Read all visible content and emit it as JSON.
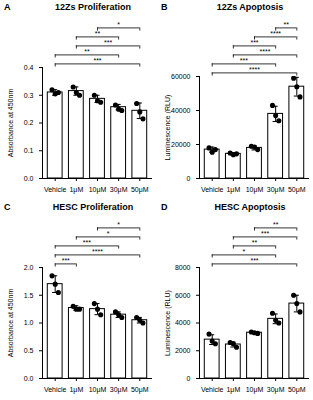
{
  "chart_data": [
    {
      "type": "bar",
      "panel": "A",
      "title": "12Zs Proliferation",
      "ylabel": "Absorbance at 450nm",
      "categories": [
        "Vehicle",
        "1μM",
        "10μM",
        "30μM",
        "50μM"
      ],
      "values": [
        0.31,
        0.315,
        0.287,
        0.257,
        0.244
      ],
      "errors": [
        0.01,
        0.015,
        0.013,
        0.01,
        0.028
      ],
      "points": [
        [
          0.32,
          0.305,
          0.31
        ],
        [
          0.33,
          0.31,
          0.3
        ],
        [
          0.3,
          0.28,
          0.275
        ],
        [
          0.265,
          0.25,
          0.245
        ],
        [
          0.27,
          0.24,
          0.215
        ]
      ],
      "color": "#000000",
      "ylim": [
        0,
        0.4
      ],
      "yticks": [
        {
          "value": 0,
          "label": "0.0"
        },
        0.1,
        0.2,
        0.3,
        0.4
      ],
      "comparisons": [
        {
          "from": "Vehicle",
          "to": "50μM",
          "label": "***"
        },
        {
          "from": "Vehicle",
          "to": "30μM",
          "label": "**"
        },
        {
          "from": "1μM",
          "to": "50μM",
          "label": "***"
        },
        {
          "from": "1μM",
          "to": "30μM",
          "label": "**"
        },
        {
          "from": "10μM",
          "to": "50μM",
          "label": "*"
        }
      ]
    },
    {
      "type": "bar",
      "panel": "B",
      "title": "12Zs Apoptosis",
      "ylabel": "Luminescence (RLU)",
      "categories": [
        "Vehicle",
        "1μM",
        "10μM",
        "30μM",
        "50μM"
      ],
      "values": [
        17000,
        14500,
        18000,
        38000,
        54000
      ],
      "errors": [
        1500,
        700,
        1200,
        4500,
        5500
      ],
      "points": [
        [
          18000,
          15500,
          17000
        ],
        [
          15000,
          14000,
          14500
        ],
        [
          19000,
          18500,
          17000
        ],
        [
          43000,
          37000,
          34000
        ],
        [
          59000,
          54000,
          48000
        ]
      ],
      "color": "#000000",
      "ylim": [
        0,
        60000
      ],
      "yticks": [
        0,
        20000,
        40000,
        60000
      ],
      "comparisons": [
        {
          "from": "Vehicle",
          "to": "50μM",
          "label": "****"
        },
        {
          "from": "Vehicle",
          "to": "30μM",
          "label": "***"
        },
        {
          "from": "1μM",
          "to": "50μM",
          "label": "****"
        },
        {
          "from": "1μM",
          "to": "30μM",
          "label": "***"
        },
        {
          "from": "10μM",
          "to": "50μM",
          "label": "****"
        },
        {
          "from": "30μM",
          "to": "50μM",
          "label": "**"
        }
      ]
    },
    {
      "type": "bar",
      "panel": "C",
      "title": "HESC Proliferation",
      "ylabel": "Absorbance at 450nm",
      "categories": [
        "Vehicle",
        "1μM",
        "10μM",
        "30μM",
        "50μM"
      ],
      "values": [
        1.7,
        1.27,
        1.25,
        1.15,
        1.05
      ],
      "errors": [
        0.15,
        0.04,
        0.1,
        0.05,
        0.05
      ],
      "points": [
        [
          1.85,
          1.7,
          1.55
        ],
        [
          1.3,
          1.25,
          1.25
        ],
        [
          1.35,
          1.25,
          1.15
        ],
        [
          1.2,
          1.15,
          1.1
        ],
        [
          1.1,
          1.05,
          1.0
        ]
      ],
      "color": "#000000",
      "ylim": [
        0,
        2.0
      ],
      "yticks": [
        {
          "value": 0,
          "label": "0.0"
        },
        0.5,
        {
          "value": 1,
          "label": "1.0"
        },
        1.5,
        {
          "value": 2,
          "label": "2.0"
        }
      ],
      "comparisons": [
        {
          "from": "Vehicle",
          "to": "1μM",
          "label": "***"
        },
        {
          "from": "Vehicle",
          "to": "50μM",
          "label": "****"
        },
        {
          "from": "Vehicle",
          "to": "30μM",
          "label": "***"
        },
        {
          "from": "1μM",
          "to": "50μM",
          "label": "*"
        },
        {
          "from": "10μM",
          "to": "50μM",
          "label": "*"
        }
      ]
    },
    {
      "type": "bar",
      "panel": "D",
      "title": "HESC Apoptosis",
      "ylabel": "Luminescence (RLU)",
      "categories": [
        "Vehicle",
        "1μM",
        "10μM",
        "30μM",
        "50μM"
      ],
      "values": [
        2800,
        2450,
        3300,
        4300,
        5400
      ],
      "errors": [
        350,
        180,
        60,
        350,
        600
      ],
      "points": [
        [
          3200,
          2700,
          2500
        ],
        [
          2600,
          2500,
          2250
        ],
        [
          3350,
          3300,
          3250
        ],
        [
          4700,
          4200,
          4000
        ],
        [
          6000,
          5400,
          4800
        ]
      ],
      "color": "#000000",
      "ylim": [
        0,
        8000
      ],
      "yticks": [
        0,
        2000,
        4000,
        6000,
        8000
      ],
      "comparisons": [
        {
          "from": "Vehicle",
          "to": "50μM",
          "label": "***"
        },
        {
          "from": "Vehicle",
          "to": "30μM",
          "label": "*"
        },
        {
          "from": "1μM",
          "to": "30μM",
          "label": "**"
        },
        {
          "from": "1μM",
          "to": "50μM",
          "label": "***"
        },
        {
          "from": "10μM",
          "to": "50μM",
          "label": "**"
        }
      ]
    }
  ]
}
